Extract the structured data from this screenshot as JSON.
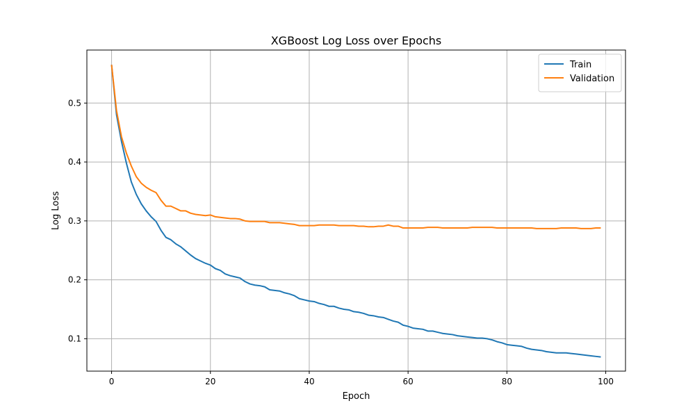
{
  "chart_data": {
    "type": "line",
    "title": "XGBoost Log Loss over Epochs",
    "xlabel": "Epoch",
    "ylabel": "Log Loss",
    "xlim": [
      -5,
      104
    ],
    "ylim": [
      0.045,
      0.59
    ],
    "xticks": [
      0,
      20,
      40,
      60,
      80,
      100
    ],
    "yticks": [
      0.1,
      0.2,
      0.3,
      0.4,
      0.5
    ],
    "xtick_labels": [
      "0",
      "20",
      "40",
      "60",
      "80",
      "100"
    ],
    "ytick_labels": [
      "0.1",
      "0.2",
      "0.3",
      "0.4",
      "0.5"
    ],
    "grid": true,
    "legend_position": "top-right",
    "series": [
      {
        "name": "Train",
        "color": "#1f77b4",
        "x": [
          0,
          1,
          2,
          3,
          4,
          5,
          6,
          7,
          8,
          9,
          10,
          11,
          12,
          13,
          14,
          15,
          16,
          17,
          18,
          19,
          20,
          21,
          22,
          23,
          24,
          25,
          26,
          27,
          28,
          29,
          30,
          31,
          32,
          33,
          34,
          35,
          36,
          37,
          38,
          39,
          40,
          41,
          42,
          43,
          44,
          45,
          46,
          47,
          48,
          49,
          50,
          51,
          52,
          53,
          54,
          55,
          56,
          57,
          58,
          59,
          60,
          61,
          62,
          63,
          64,
          65,
          66,
          67,
          68,
          69,
          70,
          71,
          72,
          73,
          74,
          75,
          76,
          77,
          78,
          79,
          80,
          81,
          82,
          83,
          84,
          85,
          86,
          87,
          88,
          89,
          90,
          91,
          92,
          93,
          94,
          95,
          96,
          97,
          98,
          99
        ],
        "y": [
          0.565,
          0.48,
          0.435,
          0.398,
          0.366,
          0.345,
          0.329,
          0.317,
          0.307,
          0.299,
          0.284,
          0.272,
          0.268,
          0.261,
          0.256,
          0.249,
          0.242,
          0.236,
          0.232,
          0.228,
          0.225,
          0.219,
          0.216,
          0.21,
          0.207,
          0.205,
          0.203,
          0.197,
          0.193,
          0.191,
          0.19,
          0.188,
          0.183,
          0.182,
          0.181,
          0.178,
          0.176,
          0.173,
          0.168,
          0.166,
          0.164,
          0.163,
          0.16,
          0.158,
          0.155,
          0.155,
          0.152,
          0.15,
          0.149,
          0.146,
          0.145,
          0.143,
          0.14,
          0.139,
          0.137,
          0.136,
          0.133,
          0.13,
          0.128,
          0.123,
          0.121,
          0.118,
          0.117,
          0.116,
          0.113,
          0.113,
          0.111,
          0.109,
          0.108,
          0.107,
          0.105,
          0.104,
          0.103,
          0.102,
          0.101,
          0.101,
          0.1,
          0.098,
          0.095,
          0.093,
          0.09,
          0.089,
          0.088,
          0.087,
          0.084,
          0.082,
          0.081,
          0.08,
          0.078,
          0.077,
          0.076,
          0.076,
          0.076,
          0.075,
          0.074,
          0.073,
          0.072,
          0.071,
          0.07,
          0.069
        ]
      },
      {
        "name": "Validation",
        "color": "#ff7f0e",
        "x": [
          0,
          1,
          2,
          3,
          4,
          5,
          6,
          7,
          8,
          9,
          10,
          11,
          12,
          13,
          14,
          15,
          16,
          17,
          18,
          19,
          20,
          21,
          22,
          23,
          24,
          25,
          26,
          27,
          28,
          29,
          30,
          31,
          32,
          33,
          34,
          35,
          36,
          37,
          38,
          39,
          40,
          41,
          42,
          43,
          44,
          45,
          46,
          47,
          48,
          49,
          50,
          51,
          52,
          53,
          54,
          55,
          56,
          57,
          58,
          59,
          60,
          61,
          62,
          63,
          64,
          65,
          66,
          67,
          68,
          69,
          70,
          71,
          72,
          73,
          74,
          75,
          76,
          77,
          78,
          79,
          80,
          81,
          82,
          83,
          84,
          85,
          86,
          87,
          88,
          89,
          90,
          91,
          92,
          93,
          94,
          95,
          96,
          97,
          98,
          99
        ],
        "y": [
          0.565,
          0.487,
          0.443,
          0.415,
          0.393,
          0.375,
          0.364,
          0.357,
          0.352,
          0.348,
          0.335,
          0.325,
          0.325,
          0.321,
          0.317,
          0.317,
          0.313,
          0.311,
          0.31,
          0.309,
          0.31,
          0.307,
          0.306,
          0.305,
          0.304,
          0.304,
          0.303,
          0.3,
          0.299,
          0.299,
          0.299,
          0.299,
          0.297,
          0.297,
          0.297,
          0.296,
          0.295,
          0.294,
          0.292,
          0.292,
          0.292,
          0.292,
          0.293,
          0.293,
          0.293,
          0.293,
          0.292,
          0.292,
          0.292,
          0.292,
          0.291,
          0.291,
          0.29,
          0.29,
          0.291,
          0.291,
          0.293,
          0.291,
          0.291,
          0.288,
          0.288,
          0.288,
          0.288,
          0.288,
          0.289,
          0.289,
          0.289,
          0.288,
          0.288,
          0.288,
          0.288,
          0.288,
          0.288,
          0.289,
          0.289,
          0.289,
          0.289,
          0.289,
          0.288,
          0.288,
          0.288,
          0.288,
          0.288,
          0.288,
          0.288,
          0.288,
          0.287,
          0.287,
          0.287,
          0.287,
          0.287,
          0.288,
          0.288,
          0.288,
          0.288,
          0.287,
          0.287,
          0.287,
          0.288,
          0.288
        ]
      }
    ]
  }
}
